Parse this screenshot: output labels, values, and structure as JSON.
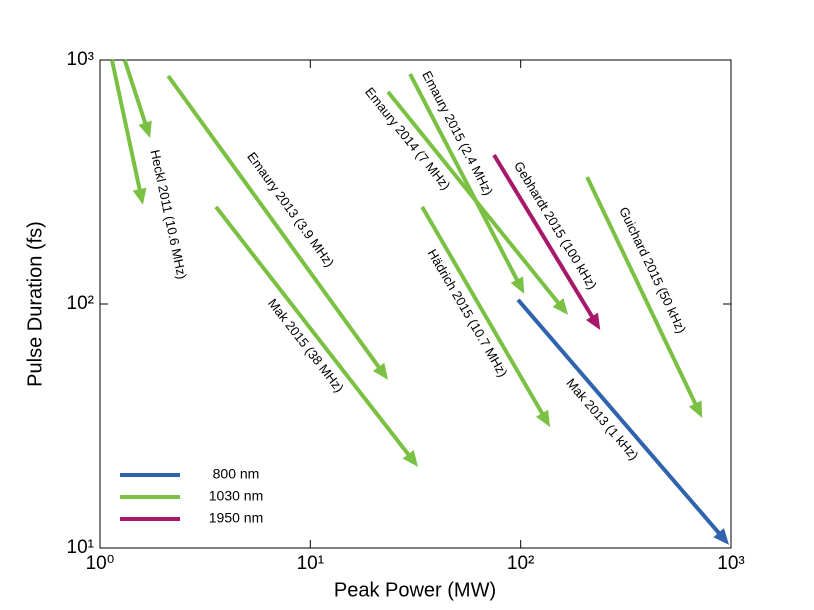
{
  "chart_data": {
    "type": "arrow",
    "x_label": "Peak Power (MW)",
    "y_label": "Pulse Duration (fs)",
    "xscale": "log",
    "yscale": "log",
    "xlim": [
      1,
      1000
    ],
    "ylim": [
      10,
      1000
    ],
    "xticks": [
      {
        "value": 1,
        "label": "10⁰"
      },
      {
        "value": 10,
        "label": "10¹"
      },
      {
        "value": 100,
        "label": "10²"
      },
      {
        "value": 1000,
        "label": "10³"
      }
    ],
    "yticks": [
      {
        "value": 10,
        "label": "10¹"
      },
      {
        "value": 100,
        "label": "10²"
      },
      {
        "value": 1000,
        "label": "10³"
      }
    ],
    "legend_position": "lower left",
    "legend": [
      {
        "name": "800 nm",
        "color": "#2f63ad"
      },
      {
        "name": "1030 nm",
        "color": "#7ac143"
      },
      {
        "name": "1950 nm",
        "color": "#a8186a"
      }
    ],
    "series": [
      {
        "name": "Heckl 2011 (10.6 MHz)",
        "color": "#7ac143",
        "x": [
          1.14,
          1.6
        ],
        "values": [
          1000,
          255
        ]
      },
      {
        "color": "#7ac143",
        "x": [
          1.31,
          1.73
        ],
        "values": [
          1000,
          479
        ]
      },
      {
        "name": "Emaury 2013 (3.9 MHz)",
        "color": "#7ac143",
        "x": [
          2.11,
          23.4
        ],
        "values": [
          860,
          48.9
        ]
      },
      {
        "name": "Mak 2015 (38 MHz)",
        "color": "#7ac143",
        "x": [
          3.56,
          32.5
        ],
        "values": [
          250,
          21.5
        ]
      },
      {
        "name": "Emaury 2014 (7 MHz)",
        "color": "#7ac143",
        "x": [
          23.4,
          168
        ],
        "values": [
          740,
          90.2
        ]
      },
      {
        "name": "Emaury 2015 (2.4 MHz)",
        "color": "#7ac143",
        "x": [
          29.8,
          104
        ],
        "values": [
          876,
          110
        ]
      },
      {
        "name": "Hädrich 2015 (10.7 MHz)",
        "color": "#7ac143",
        "x": [
          34,
          138
        ],
        "values": [
          250,
          31.3
        ]
      },
      {
        "name": "Gebhardt  2015 (100 kHz)",
        "color": "#a8186a",
        "x": [
          74.7,
          239
        ],
        "values": [
          408,
          78.2
        ]
      },
      {
        "name": "Guichard 2015 (50 kHz)",
        "color": "#7ac143",
        "x": [
          207,
          729
        ],
        "values": [
          331,
          34.1
        ]
      },
      {
        "name": "Mak 2013 (1 kHz)",
        "color": "#2f63ad",
        "x": [
          97.2,
          979
        ],
        "values": [
          104,
          10.3
        ]
      }
    ]
  }
}
